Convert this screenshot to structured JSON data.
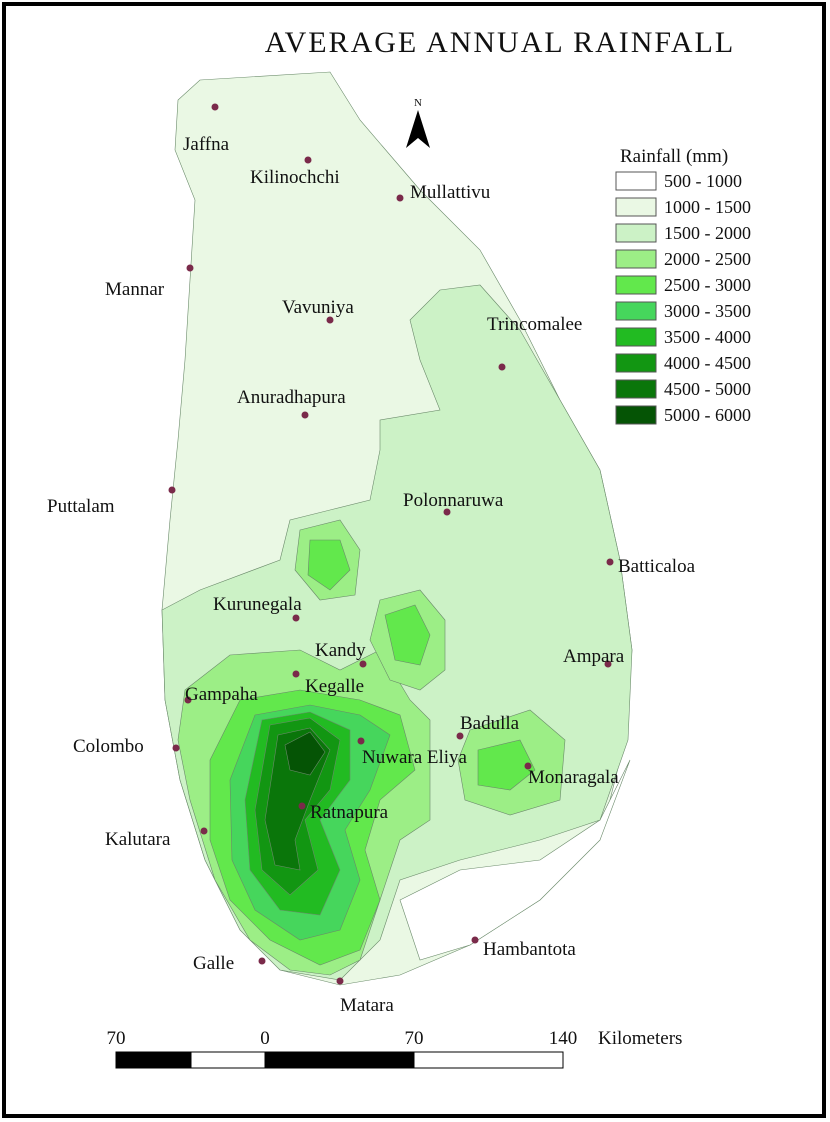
{
  "title": "AVERAGE ANNUAL RAINFALL",
  "north": "N",
  "legend": {
    "title": "Rainfall (mm)",
    "items": [
      {
        "label": "500 - 1000",
        "color": "#ffffff"
      },
      {
        "label": "1000 - 1500",
        "color": "#eaf8e4"
      },
      {
        "label": "1500 - 2000",
        "color": "#ccf2c6"
      },
      {
        "label": "2000 - 2500",
        "color": "#9cee86"
      },
      {
        "label": "2500 - 3000",
        "color": "#62e84c"
      },
      {
        "label": "3000 - 3500",
        "color": "#46d65c"
      },
      {
        "label": "3500 - 4000",
        "color": "#22bb22"
      },
      {
        "label": "4000 - 4500",
        "color": "#129612"
      },
      {
        "label": "4500 - 5000",
        "color": "#0a760a"
      },
      {
        "label": "5000 - 6000",
        "color": "#055405"
      }
    ]
  },
  "cities": [
    "Jaffna",
    "Kilinochchi",
    "Mullattivu",
    "Mannar",
    "Vavuniya",
    "Trincomalee",
    "Anuradhapura",
    "Puttalam",
    "Polonnaruwa",
    "Batticaloa",
    "Kurunegala",
    "Kandy",
    "Kegalle",
    "Gampaha",
    "Ampara",
    "Colombo",
    "Badulla",
    "Nuwara Eliya",
    "Monaragala",
    "Ratnapura",
    "Kalutara",
    "Galle",
    "Hambantota",
    "Matara"
  ],
  "scale": {
    "labels": [
      "70",
      "0",
      "70",
      "140"
    ],
    "unit": "Kilometers"
  }
}
